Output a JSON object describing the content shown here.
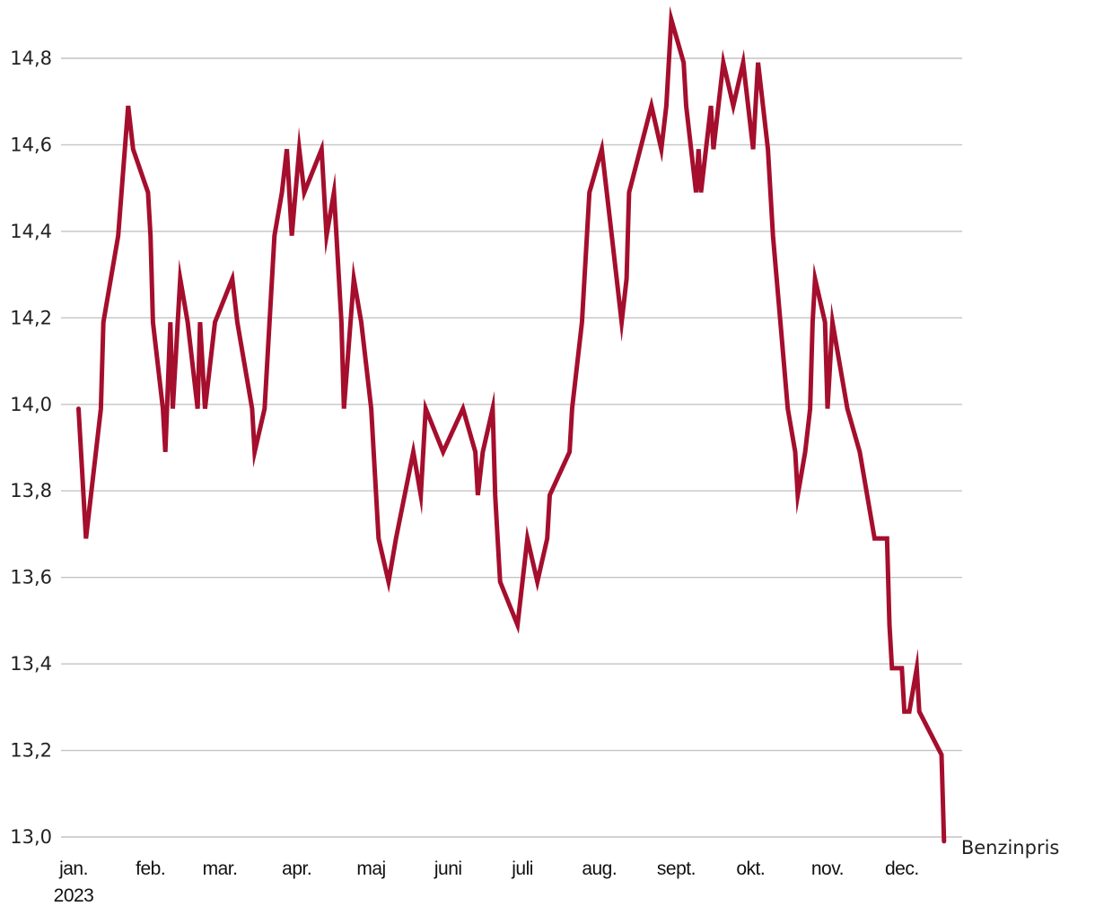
{
  "chart_data": {
    "type": "line",
    "title": "",
    "xlabel": "",
    "ylabel": "",
    "ylim": [
      13.0,
      14.8
    ],
    "yticks": [
      "13,0",
      "13,2",
      "13,4",
      "13,6",
      "13,8",
      "14,0",
      "14,2",
      "14,4",
      "14,6",
      "14,8"
    ],
    "grid": true,
    "legend": "end-of-line label",
    "x_tick_labels": [
      {
        "label": "jan.",
        "sublabel": "2023",
        "day": 0
      },
      {
        "label": "feb.",
        "day": 31
      },
      {
        "label": "mar.",
        "day": 59
      },
      {
        "label": "apr.",
        "day": 90
      },
      {
        "label": "maj",
        "day": 120
      },
      {
        "label": "juni",
        "day": 151
      },
      {
        "label": "juli",
        "day": 181
      },
      {
        "label": "aug.",
        "day": 212
      },
      {
        "label": "sept.",
        "day": 243
      },
      {
        "label": "okt.",
        "day": 273
      },
      {
        "label": "nov.",
        "day": 304
      },
      {
        "label": "dec.",
        "day": 334
      }
    ],
    "series": [
      {
        "name": "Benzinpris",
        "color": "#a50e2d",
        "points": [
          [
            2,
            13.99
          ],
          [
            5,
            13.69
          ],
          [
            11,
            13.99
          ],
          [
            12,
            14.19
          ],
          [
            18,
            14.39
          ],
          [
            22,
            14.69
          ],
          [
            24,
            14.59
          ],
          [
            30,
            14.49
          ],
          [
            31,
            14.39
          ],
          [
            32,
            14.19
          ],
          [
            36,
            13.99
          ],
          [
            37,
            13.89
          ],
          [
            39,
            14.19
          ],
          [
            40,
            13.99
          ],
          [
            43,
            14.29
          ],
          [
            46,
            14.19
          ],
          [
            50,
            13.99
          ],
          [
            51,
            14.19
          ],
          [
            53,
            13.99
          ],
          [
            57,
            14.19
          ],
          [
            64,
            14.29
          ],
          [
            66,
            14.19
          ],
          [
            72,
            13.99
          ],
          [
            73,
            13.89
          ],
          [
            77,
            13.99
          ],
          [
            81,
            14.39
          ],
          [
            84,
            14.49
          ],
          [
            86,
            14.59
          ],
          [
            88,
            14.39
          ],
          [
            91,
            14.59
          ],
          [
            93,
            14.49
          ],
          [
            100,
            14.59
          ],
          [
            102,
            14.39
          ],
          [
            105,
            14.49
          ],
          [
            108,
            14.19
          ],
          [
            109,
            13.99
          ],
          [
            113,
            14.29
          ],
          [
            116,
            14.19
          ],
          [
            120,
            13.99
          ],
          [
            123,
            13.69
          ],
          [
            127,
            13.59
          ],
          [
            130,
            13.69
          ],
          [
            137,
            13.89
          ],
          [
            140,
            13.79
          ],
          [
            142,
            13.99
          ],
          [
            149,
            13.89
          ],
          [
            157,
            13.99
          ],
          [
            162,
            13.89
          ],
          [
            163,
            13.79
          ],
          [
            165,
            13.89
          ],
          [
            169,
            13.99
          ],
          [
            170,
            13.79
          ],
          [
            172,
            13.59
          ],
          [
            179,
            13.49
          ],
          [
            183,
            13.69
          ],
          [
            187,
            13.59
          ],
          [
            191,
            13.69
          ],
          [
            192,
            13.79
          ],
          [
            200,
            13.89
          ],
          [
            201,
            13.99
          ],
          [
            205,
            14.19
          ],
          [
            208,
            14.49
          ],
          [
            213,
            14.59
          ],
          [
            217,
            14.39
          ],
          [
            221,
            14.19
          ],
          [
            223,
            14.29
          ],
          [
            224,
            14.49
          ],
          [
            233,
            14.69
          ],
          [
            237,
            14.59
          ],
          [
            239,
            14.69
          ],
          [
            241,
            14.89
          ],
          [
            246,
            14.79
          ],
          [
            247,
            14.69
          ],
          [
            251,
            14.49
          ],
          [
            252,
            14.59
          ],
          [
            253,
            14.49
          ],
          [
            257,
            14.69
          ],
          [
            258,
            14.59
          ],
          [
            262,
            14.79
          ],
          [
            266,
            14.69
          ],
          [
            270,
            14.79
          ],
          [
            274,
            14.59
          ],
          [
            275,
            14.69
          ],
          [
            276,
            14.79
          ],
          [
            280,
            14.59
          ],
          [
            282,
            14.39
          ],
          [
            285,
            14.19
          ],
          [
            288,
            13.99
          ],
          [
            291,
            13.89
          ],
          [
            292,
            13.79
          ],
          [
            295,
            13.89
          ],
          [
            297,
            13.99
          ],
          [
            298,
            14.19
          ],
          [
            299,
            14.29
          ],
          [
            303,
            14.19
          ],
          [
            304,
            13.99
          ],
          [
            306,
            14.19
          ],
          [
            312,
            13.99
          ],
          [
            317,
            13.89
          ],
          [
            323,
            13.69
          ],
          [
            328,
            13.69
          ],
          [
            329,
            13.49
          ],
          [
            330,
            13.39
          ],
          [
            334,
            13.39
          ],
          [
            335,
            13.29
          ],
          [
            337,
            13.29
          ],
          [
            340,
            13.39
          ],
          [
            341,
            13.29
          ],
          [
            350,
            13.19
          ],
          [
            351,
            12.99
          ]
        ]
      }
    ]
  }
}
